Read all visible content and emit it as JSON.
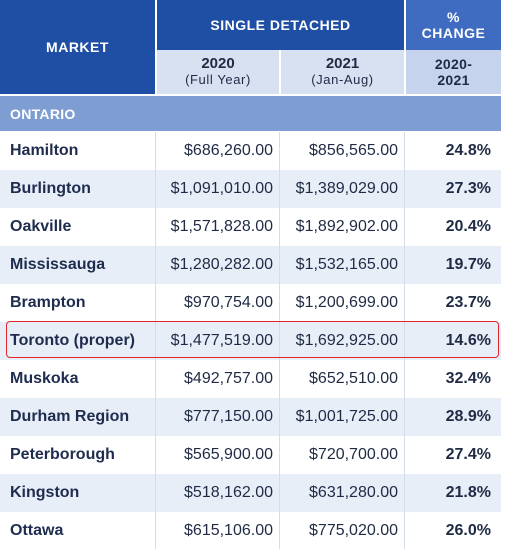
{
  "header": {
    "market": "MARKET",
    "single_detached": "SINGLE DETACHED",
    "pct_line1": "%",
    "pct_line2": "CHANGE",
    "col_2020_year": "2020",
    "col_2020_sub": "(Full Year)",
    "col_2021_year": "2021",
    "col_2021_sub": "(Jan-Aug)",
    "col_change_line1": "2020-",
    "col_change_line2": "2021"
  },
  "section": "ONTARIO",
  "highlighted_market": "Toronto (proper)",
  "colors": {
    "header_blue": "#1f4fa5",
    "change_header": "#3f6cc0",
    "section_band": "#7e9ed3",
    "highlight_border": "#e0262b"
  },
  "rows": [
    {
      "market": "Hamilton",
      "y2020": "$686,260.00",
      "y2021": "$856,565.00",
      "change": "24.8%"
    },
    {
      "market": "Burlington",
      "y2020": "$1,091,010.00",
      "y2021": "$1,389,029.00",
      "change": "27.3%"
    },
    {
      "market": "Oakville",
      "y2020": "$1,571,828.00",
      "y2021": "$1,892,902.00",
      "change": "20.4%"
    },
    {
      "market": "Mississauga",
      "y2020": "$1,280,282.00",
      "y2021": "$1,532,165.00",
      "change": "19.7%"
    },
    {
      "market": "Brampton",
      "y2020": "$970,754.00",
      "y2021": "$1,200,699.00",
      "change": "23.7%"
    },
    {
      "market": "Toronto (proper)",
      "y2020": "$1,477,519.00",
      "y2021": "$1,692,925.00",
      "change": "14.6%"
    },
    {
      "market": "Muskoka",
      "y2020": "$492,757.00",
      "y2021": "$652,510.00",
      "change": "32.4%"
    },
    {
      "market": "Durham Region",
      "y2020": "$777,150.00",
      "y2021": "$1,001,725.00",
      "change": "28.9%"
    },
    {
      "market": "Peterborough",
      "y2020": "$565,900.00",
      "y2021": "$720,700.00",
      "change": "27.4%"
    },
    {
      "market": "Kingston",
      "y2020": "$518,162.00",
      "y2021": "$631,280.00",
      "change": "21.8%"
    },
    {
      "market": "Ottawa",
      "y2020": "$615,106.00",
      "y2021": "$775,020.00",
      "change": "26.0%"
    }
  ]
}
